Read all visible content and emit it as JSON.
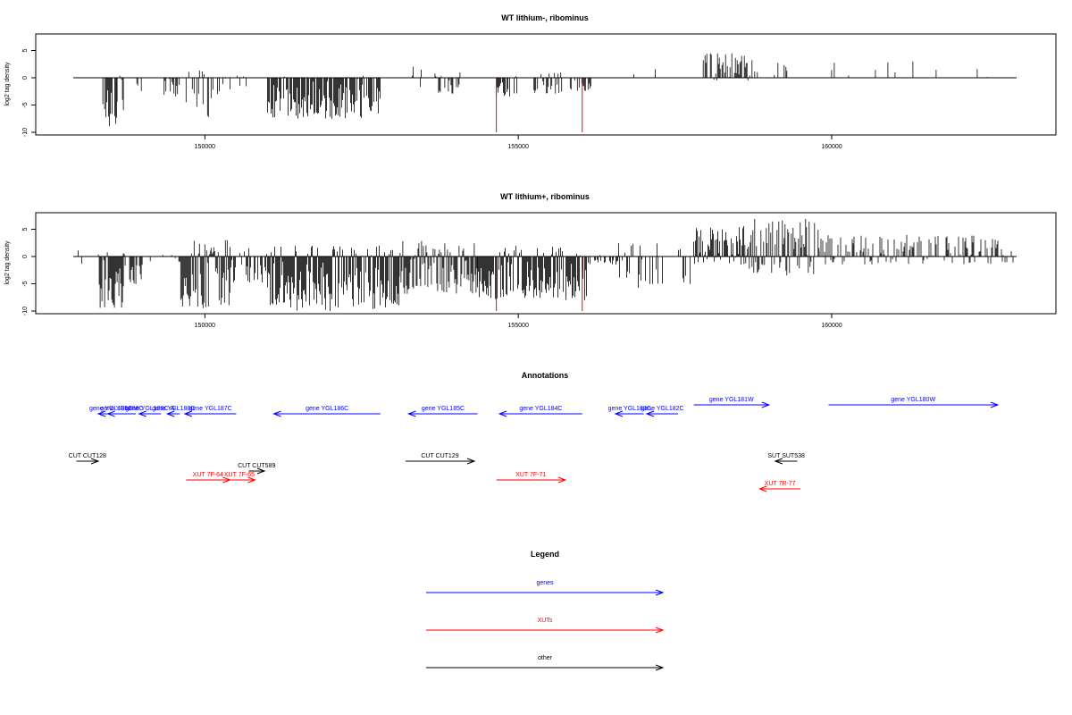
{
  "colors": {
    "gene": "#0000ff",
    "xut": "#ff0000",
    "other": "#000000",
    "bars": "#000000",
    "highlight": "#ff0000"
  },
  "chart_data": [
    {
      "type": "bar",
      "title": "WT lithium-, ribominus",
      "ylabel": "log2 tag density",
      "xlim": [
        147900,
        162950
      ],
      "ylim": [
        -10,
        7
      ],
      "x_ticks": [
        150000,
        155000,
        160000
      ],
      "x_tick_labels": [
        "150000",
        "155000",
        "160000"
      ],
      "y_ticks": [
        5,
        0,
        -5,
        -10
      ],
      "y_tick_labels": [
        "5",
        "0",
        "-5",
        "-10"
      ],
      "baseline": {
        "x": [
          147900,
          162950
        ],
        "y": 0
      },
      "highlight_bars": [
        {
          "x": 154650,
          "value": -10
        },
        {
          "x": 156020,
          "value": -10
        }
      ],
      "regions": [
        {
          "x": [
            148300,
            148420
          ],
          "min": -9,
          "max": 1,
          "density": 0.45
        },
        {
          "x": [
            148420,
            148600
          ],
          "min": -9.5,
          "max": 0.5,
          "density": 0.9
        },
        {
          "x": [
            148600,
            148700
          ],
          "min": -7,
          "max": 0.5,
          "density": 0.7
        },
        {
          "x": [
            148900,
            149000
          ],
          "min": -3.5,
          "max": 0,
          "density": 0.35
        },
        {
          "x": [
            149350,
            149600
          ],
          "min": -3.8,
          "max": 0,
          "density": 0.6
        },
        {
          "x": [
            149700,
            150150
          ],
          "min": -7.5,
          "max": 1.5,
          "density": 0.55
        },
        {
          "x": [
            150200,
            150400
          ],
          "min": -3,
          "max": 0,
          "density": 0.4
        },
        {
          "x": [
            150400,
            150700
          ],
          "min": -2.5,
          "max": 0.5,
          "density": 0.3
        },
        {
          "x": [
            151000,
            152800
          ],
          "min": -7.5,
          "max": 0.5,
          "density": 0.85
        },
        {
          "x": [
            153250,
            153450
          ],
          "min": -2.5,
          "max": 3,
          "density": 0.35
        },
        {
          "x": [
            153600,
            154100
          ],
          "min": -3,
          "max": 1,
          "density": 0.4
        },
        {
          "x": [
            154650,
            155000
          ],
          "min": -3.5,
          "max": 0.5,
          "density": 0.5
        },
        {
          "x": [
            155250,
            155700
          ],
          "min": -3,
          "max": 1,
          "density": 0.5
        },
        {
          "x": [
            155700,
            156200
          ],
          "min": -2.5,
          "max": 0.5,
          "density": 0.4
        },
        {
          "x": [
            156800,
            157700
          ],
          "min": -0.5,
          "max": 2.5,
          "density": 0.05
        },
        {
          "x": [
            157950,
            158700
          ],
          "min": -0.5,
          "max": 4.5,
          "density": 0.7
        },
        {
          "x": [
            158700,
            159300
          ],
          "min": -0.5,
          "max": 4,
          "density": 0.25
        },
        {
          "x": [
            159300,
            162900
          ],
          "min": 0,
          "max": 3,
          "density": 0.06
        }
      ]
    },
    {
      "type": "bar",
      "title": "WT lithium+, ribominus",
      "ylabel": "log2 tag density",
      "xlim": [
        147900,
        162950
      ],
      "ylim": [
        -10,
        7
      ],
      "x_ticks": [
        150000,
        155000,
        160000
      ],
      "x_tick_labels": [
        "150000",
        "155000",
        "160000"
      ],
      "y_ticks": [
        5,
        0,
        -5,
        -10
      ],
      "y_tick_labels": [
        "5",
        "0",
        "-5",
        "-10"
      ],
      "baseline": {
        "x": [
          147900,
          162950
        ],
        "y": 0
      },
      "highlight_bars": [
        {
          "x": 154650,
          "value": -10
        },
        {
          "x": 156020,
          "value": -10
        }
      ],
      "regions": [
        {
          "x": [
            147950,
            148100
          ],
          "min": -2,
          "max": 2,
          "density": 0.2
        },
        {
          "x": [
            148300,
            148700
          ],
          "min": -9.5,
          "max": 1,
          "density": 0.85
        },
        {
          "x": [
            148700,
            149000
          ],
          "min": -6,
          "max": 0.5,
          "density": 0.65
        },
        {
          "x": [
            149000,
            149600
          ],
          "min": -1.5,
          "max": 0.5,
          "density": 0.1
        },
        {
          "x": [
            149600,
            150400
          ],
          "min": -9.5,
          "max": 3,
          "density": 0.9
        },
        {
          "x": [
            150400,
            151000
          ],
          "min": -5,
          "max": 2,
          "density": 0.6
        },
        {
          "x": [
            151000,
            153100
          ],
          "min": -10,
          "max": 2,
          "density": 0.95
        },
        {
          "x": [
            153100,
            154350
          ],
          "min": -7,
          "max": 3,
          "density": 0.85
        },
        {
          "x": [
            154350,
            156100
          ],
          "min": -8,
          "max": 2,
          "density": 0.95
        },
        {
          "x": [
            156100,
            156600
          ],
          "min": -1.5,
          "max": 1,
          "density": 0.3
        },
        {
          "x": [
            156600,
            157800
          ],
          "min": -6,
          "max": 2.5,
          "density": 0.3
        },
        {
          "x": [
            157800,
            158600
          ],
          "min": -1.5,
          "max": 6,
          "density": 0.85
        },
        {
          "x": [
            158600,
            159800
          ],
          "min": -3.5,
          "max": 7,
          "density": 0.75
        },
        {
          "x": [
            159800,
            162900
          ],
          "min": -1.5,
          "max": 4,
          "density": 0.55
        }
      ]
    }
  ],
  "annotations": {
    "title": "Annotations",
    "xlim": [
      147900,
      162950
    ],
    "items": [
      {
        "label": "gene YGL189C",
        "kind": "gene",
        "from": 148700,
        "to": 148300,
        "lane": 1
      },
      {
        "label": "gene YGL188C",
        "kind": "gene",
        "from": 148900,
        "to": 148450,
        "lane": 1
      },
      {
        "label": "gene YGL188C-A",
        "kind": "gene",
        "from": 149300,
        "to": 148950,
        "lane": 1
      },
      {
        "label": "gene YGL188C",
        "kind": "gene",
        "from": 149600,
        "to": 149400,
        "lane": 1
      },
      {
        "label": "gene YGL187C",
        "kind": "gene",
        "from": 150500,
        "to": 149680,
        "lane": 1
      },
      {
        "label": "gene YGL186C",
        "kind": "gene",
        "from": 152800,
        "to": 151100,
        "lane": 1
      },
      {
        "label": "gene YGL185C",
        "kind": "gene",
        "from": 154350,
        "to": 153250,
        "lane": 1
      },
      {
        "label": "gene YGL184C",
        "kind": "gene",
        "from": 156020,
        "to": 154700,
        "lane": 1
      },
      {
        "label": "gene YGL183C",
        "kind": "gene",
        "from": 157000,
        "to": 156550,
        "lane": 1
      },
      {
        "label": "gene YGL182C",
        "kind": "gene",
        "from": 157550,
        "to": 157050,
        "lane": 1
      },
      {
        "label": "gene YGL181W",
        "kind": "gene",
        "from": 157800,
        "to": 159000,
        "lane": 0
      },
      {
        "label": "gene YGL180W",
        "kind": "gene",
        "from": 159950,
        "to": 162650,
        "lane": 0
      },
      {
        "label": "CUT CUT128",
        "kind": "other",
        "from": 147950,
        "to": 148300,
        "lane": 2
      },
      {
        "label": "CUT CUT589",
        "kind": "other",
        "from": 150700,
        "to": 150950,
        "lane": 3
      },
      {
        "label": "CUT CUT129",
        "kind": "other",
        "from": 153200,
        "to": 154300,
        "lane": 2
      },
      {
        "label": "SUT SUT538",
        "kind": "other",
        "from": 159450,
        "to": 159100,
        "lane": 2
      },
      {
        "label": "XUT 7F-64",
        "kind": "xut",
        "from": 149700,
        "to": 150400,
        "lane": 4
      },
      {
        "label": "XUT 7F-65",
        "kind": "xut",
        "from": 150300,
        "to": 150800,
        "lane": 4
      },
      {
        "label": "XUT 7F-71",
        "kind": "xut",
        "from": 154650,
        "to": 155750,
        "lane": 4
      },
      {
        "label": "XUT 7R-77",
        "kind": "xut",
        "from": 159500,
        "to": 158850,
        "lane": 5
      }
    ]
  },
  "legend": {
    "title": "Legend",
    "items": [
      {
        "label": "genes",
        "kind": "gene"
      },
      {
        "label": "XUTs",
        "kind": "xut"
      },
      {
        "label": "other",
        "kind": "other"
      }
    ]
  }
}
